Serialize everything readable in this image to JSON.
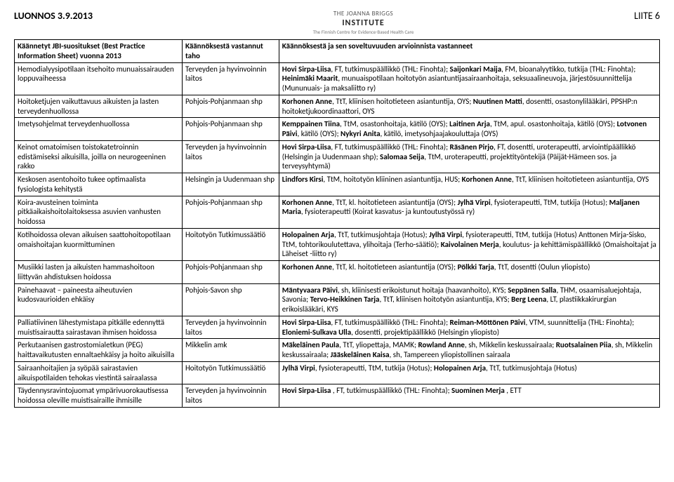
{
  "header": {
    "draft": "LUONNOS 3.9.2013",
    "annex": "LIITE 6",
    "logo_top": "THE JOANNA BRIGGS",
    "logo_mid": "INSTITUTE",
    "logo_sub": "The Finnish Centre for Evidence-Based Health Care"
  },
  "table": {
    "columns": [
      "Käännetyt JBI-suositukset (Best Practice Information Sheet) vuonna 2013",
      "Käännöksestä vastannut taho",
      "Käännöksestä ja sen soveltuvuuden arvioinnista vastanneet"
    ],
    "rows": [
      {
        "c1": "Hemodialyysipotilaan itsehoito munuaissairauden loppuvaiheessa",
        "c2": "Terveyden ja hyvinvoinnin laitos",
        "c3": "Hovi Sirpa-Liisa, FT, tutkimuspäällikkö (THL: Finohta); Saijonkari Maija, FM, bioanalyytikko, tutkija (THL: Finohta); Heinimäki Maarit, munuaispotilaan hoitotyön asiantuntijasairaanhoitaja, seksuaalineuvoja, järjestösuunnittelija (Mununuais- ja maksaliitto ry)"
      },
      {
        "c1": "Hoitoketjujen vaikuttavuus aikuisten ja lasten terveydenhuollossa",
        "c2": "Pohjois-Pohjanmaan shp",
        "c3": "Korhonen Anne, TtT, kliinisen hoitotieteen asiantuntija, OYS; Nuutinen Matti, dosentti, osastonylilääkäri, PPSHP:n hoitoketjukoordinaattori, OYS"
      },
      {
        "c1": "Imetysohjelmat terveydenhuollossa",
        "c2": "Pohjois-Pohjanmaan shp",
        "c3": "Kemppainen Tiina, TtM, osastonhoitaja, kätilö (OYS); Laitinen Arja, TtM, apul. osastonhoitaja, kätilö (OYS); Lotvonen Päivi, kätilö (OYS); Nykyri Anita, kätilö, imetysohjaajakouluttaja (OYS)"
      },
      {
        "c1": "Keinot omatoimisen toistokatetroinnin edistämiseksi aikuisilla, joilla on neurogeeninen rakko",
        "c2": "Terveyden ja hyvinvoinnin laitos",
        "c3": "Hovi Sirpa-Liisa, FT, tutkimuspäällikkö (THL: Finohta); Räsänen Pirjo, FT, dosentti, uroterapeutti, arviointipäällikkö (Helsingin ja Uudenmaan shp); Salomaa Seija, TtM, uroterapeutti, projektityöntekijä (Päijät-Hämeen sos. ja terveysyhtymä)"
      },
      {
        "c1": "Keskosen asentohoito tukee optimaalista fysiologista kehitystä",
        "c2": "Helsingin ja Uudenmaan shp",
        "c3": "Lindfors Kirsi, TtM, hoitotyön kliininen asiantuntija, HUS; Korhonen Anne, TtT, kliinisen hoitotieteen asiantuntija, OYS"
      },
      {
        "c1": "Koira-avusteinen toiminta pitkäaikaishoitolaitoksessa asuvien vanhusten hoidossa",
        "c2": "Pohjois-Pohjanmaan shp",
        "c3": "Korhonen Anne, TtT, kl. hoitotieteen asiantuntija (OYS); Jylhä Virpi, fysioterapeutti, TtM, tutkija (Hotus); Maljanen Maria, fysioterapeutti (Koirat kasvatus- ja kuntoutustyössä ry)"
      },
      {
        "c1": "Kotihoidossa olevan aikuisen saattohoitopotilaan omaishoitajan kuormittuminen",
        "c2": "Hoitotyön Tutkimussäätiö",
        "c3": "Holopainen Arja, TtT, tutkimusjohtaja (Hotus); Jylhä Virpi, fysioterapeutti, TtM, tutkija (Hotus) Anttonen Mirja-Sisko, TtM, tohtorikoulutettava, ylihoitaja (Terho-säätiö); Kaivolainen Merja, koulutus- ja kehittämispäällikkö (Omaishoitajat ja Läheiset -liitto ry)"
      },
      {
        "c1": "Musiikki lasten ja aikuisten hammashoitoon liittyvän ahdistuksen hoidossa",
        "c2": "Pohjois-Pohjanmaan shp",
        "c3": "Korhonen Anne, TtT, kl. hoitotieteen asiantuntija (OYS); Pölkki Tarja, TtT, dosentti (Oulun yliopisto)"
      },
      {
        "c1": "Painehaavat – paineesta aiheutuvien kudosvaurioiden ehkäisy",
        "c2": "Pohjois-Savon shp",
        "c3": "Mäntyvaara Päivi, sh, kliinisesti erikoistunut hoitaja (haavanhoito), KYS; Seppänen Salla, THM, osaamisaluejohtaja, Savonia; Tervo-Heikkinen Tarja, TtT, kliinisen hoitotyön asiantuntija, KYS; Berg Leena, LT, plastiikkakirurgian erikoislääkäri, KYS"
      },
      {
        "c1": "Palliatiivinen lähestymistapa pitkälle edennyttä muistisairautta sairastavan ihmisen hoidossa",
        "c2": "Terveyden ja hyvinvoinnin laitos",
        "c3": "Hovi Sirpa-Liisa, FT, tutkimuspäällikkö (THL: Finohta); Reiman-Möttönen Päivi, VTM, suunnittelija (THL: Finohta); Eloniemi-Sulkava Ulla, dosentti, projektipäällikkö (Helsingin yliopisto)"
      },
      {
        "c1": "Perkutaanisen gastrostomialetkun (PEG) haittavaikutusten ennaltaehkäisy ja hoito aikuisilla",
        "c2": "Mikkelin amk",
        "c3": "Mäkeläinen Paula, TtT, yliopettaja, MAMK; Rowland Anne, sh, Mikkelin keskussairaala; Ruotsalainen Piia, sh, Mikkelin keskussairaala; Jääskeläinen Kaisa, sh, Tampereen yliopistollinen sairaala"
      },
      {
        "c1": "Sairaanhoitajien ja syöpää sairastavien aikuispotilaiden tehokas viestintä sairaalassa",
        "c2": "Hoitotyön Tutkimussäätiö",
        "c3": "Jylhä Virpi, fysioterapeutti, TtM, tutkija (Hotus); Holopainen Arja, TtT, tutkimusjohtaja (Hotus)"
      },
      {
        "c1": "Täydennysravintojuomat ympärivuorokautisessa hoidossa oleville muistisairaille ihmisille",
        "c2": "Terveyden ja hyvinvoinnin laitos",
        "c3": "Hovi Sirpa-Liisa , FT, tutkimuspäällikkö (THL: Finohta); Suominen Merja , ETT"
      }
    ]
  }
}
